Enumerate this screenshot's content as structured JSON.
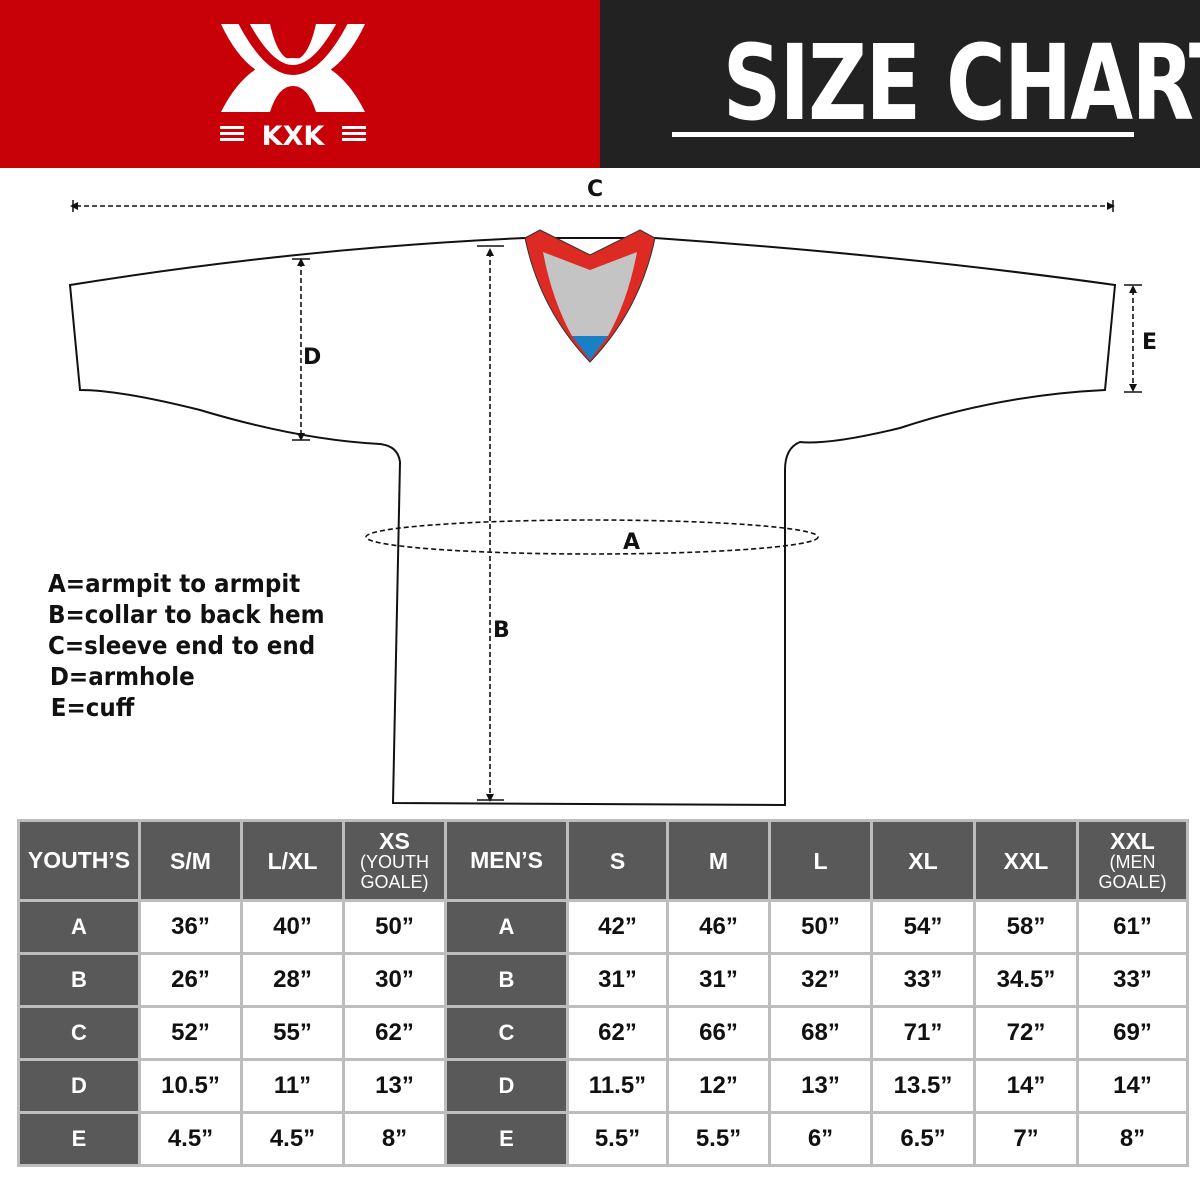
{
  "brand": {
    "name": "KXK",
    "color": "#c80008"
  },
  "header": {
    "title": "SIZE CHART",
    "background": "#222222"
  },
  "diagram": {
    "labels": {
      "A": "A",
      "B": "B",
      "C": "C",
      "D": "D",
      "E": "E"
    },
    "collar_colors": {
      "trim": "#dd2a22",
      "inner": "#c4c4c4",
      "accent": "#1a7fc4"
    }
  },
  "legend": [
    "A=armpit to armpit",
    "B=collar to back hem",
    "C=sleeve end to end",
    "D=armhole",
    "E=cuff"
  ],
  "table": {
    "youth": {
      "header": "YOUTH’S",
      "columns": [
        {
          "main": "S/M",
          "sub": ""
        },
        {
          "main": "L/XL",
          "sub": ""
        },
        {
          "main": "XS",
          "sub": "(YOUTH GOALE)"
        }
      ],
      "rows": [
        {
          "label": "A",
          "values": [
            "36”",
            "40”",
            "50”"
          ]
        },
        {
          "label": "B",
          "values": [
            "26”",
            "28”",
            "30”"
          ]
        },
        {
          "label": "C",
          "values": [
            "52”",
            "55”",
            "62”"
          ]
        },
        {
          "label": "D",
          "values": [
            "10.5”",
            "11”",
            "13”"
          ]
        },
        {
          "label": "E",
          "values": [
            "4.5”",
            "4.5”",
            "8”"
          ]
        }
      ]
    },
    "men": {
      "header": "MEN’S",
      "columns": [
        {
          "main": "S",
          "sub": ""
        },
        {
          "main": "M",
          "sub": ""
        },
        {
          "main": "L",
          "sub": ""
        },
        {
          "main": "XL",
          "sub": ""
        },
        {
          "main": "XXL",
          "sub": ""
        },
        {
          "main": "XXL",
          "sub": "(MEN GOALE)"
        }
      ],
      "rows": [
        {
          "label": "A",
          "values": [
            "42”",
            "46”",
            "50”",
            "54”",
            "58”",
            "61”"
          ]
        },
        {
          "label": "B",
          "values": [
            "31”",
            "31”",
            "32”",
            "33”",
            "34.5”",
            "33”"
          ]
        },
        {
          "label": "C",
          "values": [
            "62”",
            "66”",
            "68”",
            "71”",
            "72”",
            "69”"
          ]
        },
        {
          "label": "D",
          "values": [
            "11.5”",
            "12”",
            "13”",
            "13.5”",
            "14”",
            "14”"
          ]
        },
        {
          "label": "E",
          "values": [
            "5.5”",
            "5.5”",
            "6”",
            "6.5”",
            "7”",
            "8”"
          ]
        }
      ]
    }
  }
}
